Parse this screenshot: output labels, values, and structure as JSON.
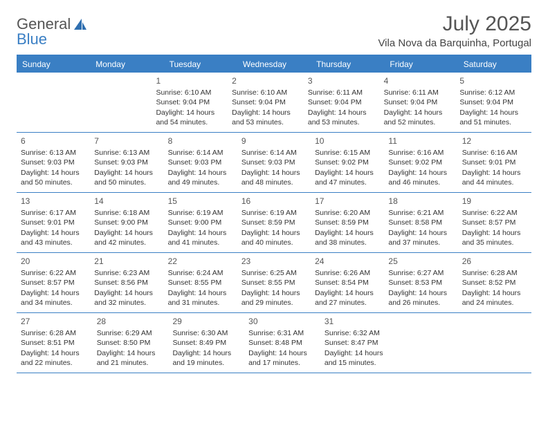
{
  "logo": {
    "text1": "General",
    "text2": "Blue"
  },
  "title": "July 2025",
  "location": "Vila Nova da Barquinha, Portugal",
  "colors": {
    "accent": "#3a7fc4",
    "text": "#333333",
    "muted": "#555555",
    "background": "#ffffff"
  },
  "weekdays": [
    "Sunday",
    "Monday",
    "Tuesday",
    "Wednesday",
    "Thursday",
    "Friday",
    "Saturday"
  ],
  "weeks": [
    [
      null,
      null,
      {
        "n": "1",
        "sr": "Sunrise: 6:10 AM",
        "ss": "Sunset: 9:04 PM",
        "dl": "Daylight: 14 hours and 54 minutes."
      },
      {
        "n": "2",
        "sr": "Sunrise: 6:10 AM",
        "ss": "Sunset: 9:04 PM",
        "dl": "Daylight: 14 hours and 53 minutes."
      },
      {
        "n": "3",
        "sr": "Sunrise: 6:11 AM",
        "ss": "Sunset: 9:04 PM",
        "dl": "Daylight: 14 hours and 53 minutes."
      },
      {
        "n": "4",
        "sr": "Sunrise: 6:11 AM",
        "ss": "Sunset: 9:04 PM",
        "dl": "Daylight: 14 hours and 52 minutes."
      },
      {
        "n": "5",
        "sr": "Sunrise: 6:12 AM",
        "ss": "Sunset: 9:04 PM",
        "dl": "Daylight: 14 hours and 51 minutes."
      }
    ],
    [
      {
        "n": "6",
        "sr": "Sunrise: 6:13 AM",
        "ss": "Sunset: 9:03 PM",
        "dl": "Daylight: 14 hours and 50 minutes."
      },
      {
        "n": "7",
        "sr": "Sunrise: 6:13 AM",
        "ss": "Sunset: 9:03 PM",
        "dl": "Daylight: 14 hours and 50 minutes."
      },
      {
        "n": "8",
        "sr": "Sunrise: 6:14 AM",
        "ss": "Sunset: 9:03 PM",
        "dl": "Daylight: 14 hours and 49 minutes."
      },
      {
        "n": "9",
        "sr": "Sunrise: 6:14 AM",
        "ss": "Sunset: 9:03 PM",
        "dl": "Daylight: 14 hours and 48 minutes."
      },
      {
        "n": "10",
        "sr": "Sunrise: 6:15 AM",
        "ss": "Sunset: 9:02 PM",
        "dl": "Daylight: 14 hours and 47 minutes."
      },
      {
        "n": "11",
        "sr": "Sunrise: 6:16 AM",
        "ss": "Sunset: 9:02 PM",
        "dl": "Daylight: 14 hours and 46 minutes."
      },
      {
        "n": "12",
        "sr": "Sunrise: 6:16 AM",
        "ss": "Sunset: 9:01 PM",
        "dl": "Daylight: 14 hours and 44 minutes."
      }
    ],
    [
      {
        "n": "13",
        "sr": "Sunrise: 6:17 AM",
        "ss": "Sunset: 9:01 PM",
        "dl": "Daylight: 14 hours and 43 minutes."
      },
      {
        "n": "14",
        "sr": "Sunrise: 6:18 AM",
        "ss": "Sunset: 9:00 PM",
        "dl": "Daylight: 14 hours and 42 minutes."
      },
      {
        "n": "15",
        "sr": "Sunrise: 6:19 AM",
        "ss": "Sunset: 9:00 PM",
        "dl": "Daylight: 14 hours and 41 minutes."
      },
      {
        "n": "16",
        "sr": "Sunrise: 6:19 AM",
        "ss": "Sunset: 8:59 PM",
        "dl": "Daylight: 14 hours and 40 minutes."
      },
      {
        "n": "17",
        "sr": "Sunrise: 6:20 AM",
        "ss": "Sunset: 8:59 PM",
        "dl": "Daylight: 14 hours and 38 minutes."
      },
      {
        "n": "18",
        "sr": "Sunrise: 6:21 AM",
        "ss": "Sunset: 8:58 PM",
        "dl": "Daylight: 14 hours and 37 minutes."
      },
      {
        "n": "19",
        "sr": "Sunrise: 6:22 AM",
        "ss": "Sunset: 8:57 PM",
        "dl": "Daylight: 14 hours and 35 minutes."
      }
    ],
    [
      {
        "n": "20",
        "sr": "Sunrise: 6:22 AM",
        "ss": "Sunset: 8:57 PM",
        "dl": "Daylight: 14 hours and 34 minutes."
      },
      {
        "n": "21",
        "sr": "Sunrise: 6:23 AM",
        "ss": "Sunset: 8:56 PM",
        "dl": "Daylight: 14 hours and 32 minutes."
      },
      {
        "n": "22",
        "sr": "Sunrise: 6:24 AM",
        "ss": "Sunset: 8:55 PM",
        "dl": "Daylight: 14 hours and 31 minutes."
      },
      {
        "n": "23",
        "sr": "Sunrise: 6:25 AM",
        "ss": "Sunset: 8:55 PM",
        "dl": "Daylight: 14 hours and 29 minutes."
      },
      {
        "n": "24",
        "sr": "Sunrise: 6:26 AM",
        "ss": "Sunset: 8:54 PM",
        "dl": "Daylight: 14 hours and 27 minutes."
      },
      {
        "n": "25",
        "sr": "Sunrise: 6:27 AM",
        "ss": "Sunset: 8:53 PM",
        "dl": "Daylight: 14 hours and 26 minutes."
      },
      {
        "n": "26",
        "sr": "Sunrise: 6:28 AM",
        "ss": "Sunset: 8:52 PM",
        "dl": "Daylight: 14 hours and 24 minutes."
      }
    ],
    [
      {
        "n": "27",
        "sr": "Sunrise: 6:28 AM",
        "ss": "Sunset: 8:51 PM",
        "dl": "Daylight: 14 hours and 22 minutes."
      },
      {
        "n": "28",
        "sr": "Sunrise: 6:29 AM",
        "ss": "Sunset: 8:50 PM",
        "dl": "Daylight: 14 hours and 21 minutes."
      },
      {
        "n": "29",
        "sr": "Sunrise: 6:30 AM",
        "ss": "Sunset: 8:49 PM",
        "dl": "Daylight: 14 hours and 19 minutes."
      },
      {
        "n": "30",
        "sr": "Sunrise: 6:31 AM",
        "ss": "Sunset: 8:48 PM",
        "dl": "Daylight: 14 hours and 17 minutes."
      },
      {
        "n": "31",
        "sr": "Sunrise: 6:32 AM",
        "ss": "Sunset: 8:47 PM",
        "dl": "Daylight: 14 hours and 15 minutes."
      },
      null,
      null
    ]
  ]
}
